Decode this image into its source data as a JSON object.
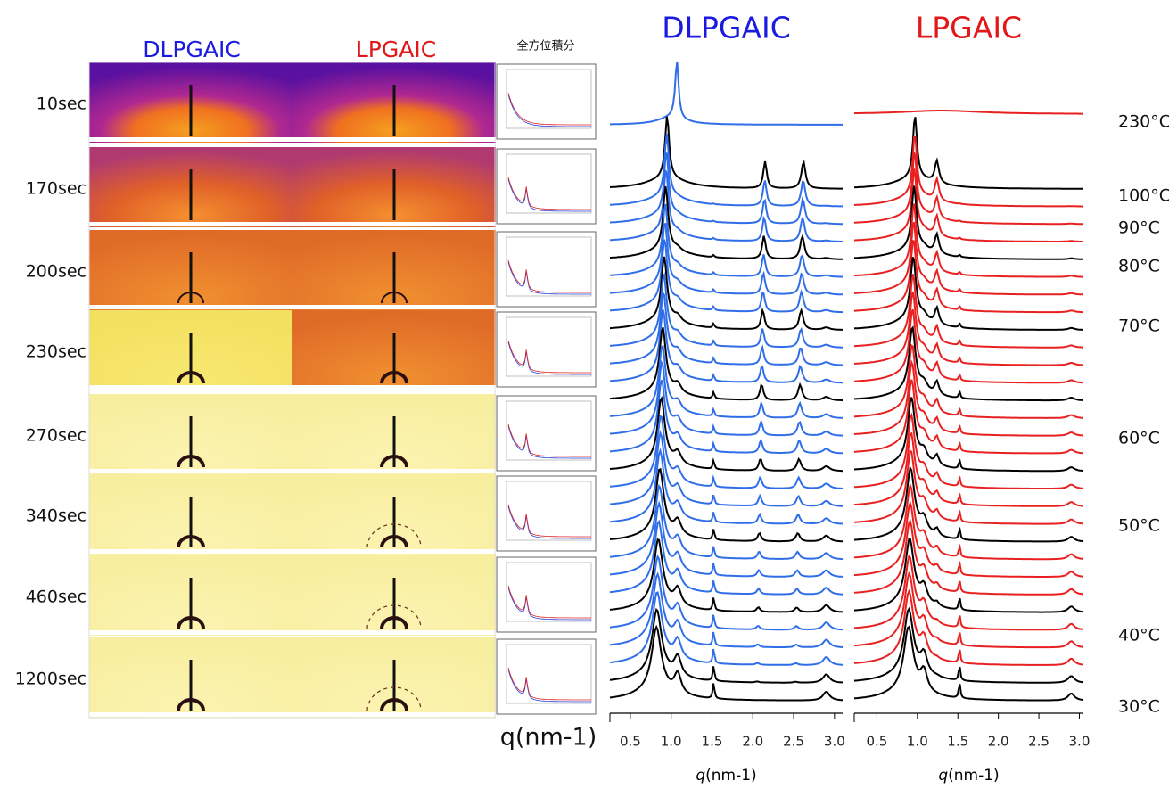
{
  "left_panel": {
    "titles": [
      "DLPGAIC",
      "LPGAIC",
      "全方位積分"
    ],
    "times": [
      "10sec",
      "170sec",
      "200sec",
      "230sec",
      "270sec",
      "340sec",
      "460sec",
      "1200sec"
    ],
    "x_label": "q(nm-1)"
  },
  "plots": [
    {
      "title": "DLPGAIC",
      "title_color": "#1a1ae0",
      "x_label": "q(nm-1)",
      "xlim": [
        0.25,
        3.1
      ],
      "xticks": [
        0.5,
        {
          "value": 1,
          "label": "1.0"
        },
        1.5,
        {
          "value": 2,
          "label": "2.0"
        },
        2.5,
        {
          "value": 3,
          "label": "3.0"
        }
      ],
      "color_a": "#000000",
      "color_b": "#2f6ee8"
    },
    {
      "title": "LPGAIC",
      "title_color": "#e01818",
      "x_label": "q(nm-1)",
      "xlim": [
        0.22,
        3.05
      ],
      "xticks": [
        0.5,
        {
          "value": 1,
          "label": "1.0"
        },
        1.5,
        {
          "value": 2,
          "label": "2.0"
        },
        2.5,
        {
          "value": 3,
          "label": "3.0"
        }
      ],
      "color_a": "#000000",
      "color_b": "#e82020"
    }
  ],
  "temperatures": [
    "230°C",
    "100°C",
    "90°C",
    "80°C",
    "70°C",
    "60°C",
    "50°C",
    "40°C",
    "30°C"
  ]
}
